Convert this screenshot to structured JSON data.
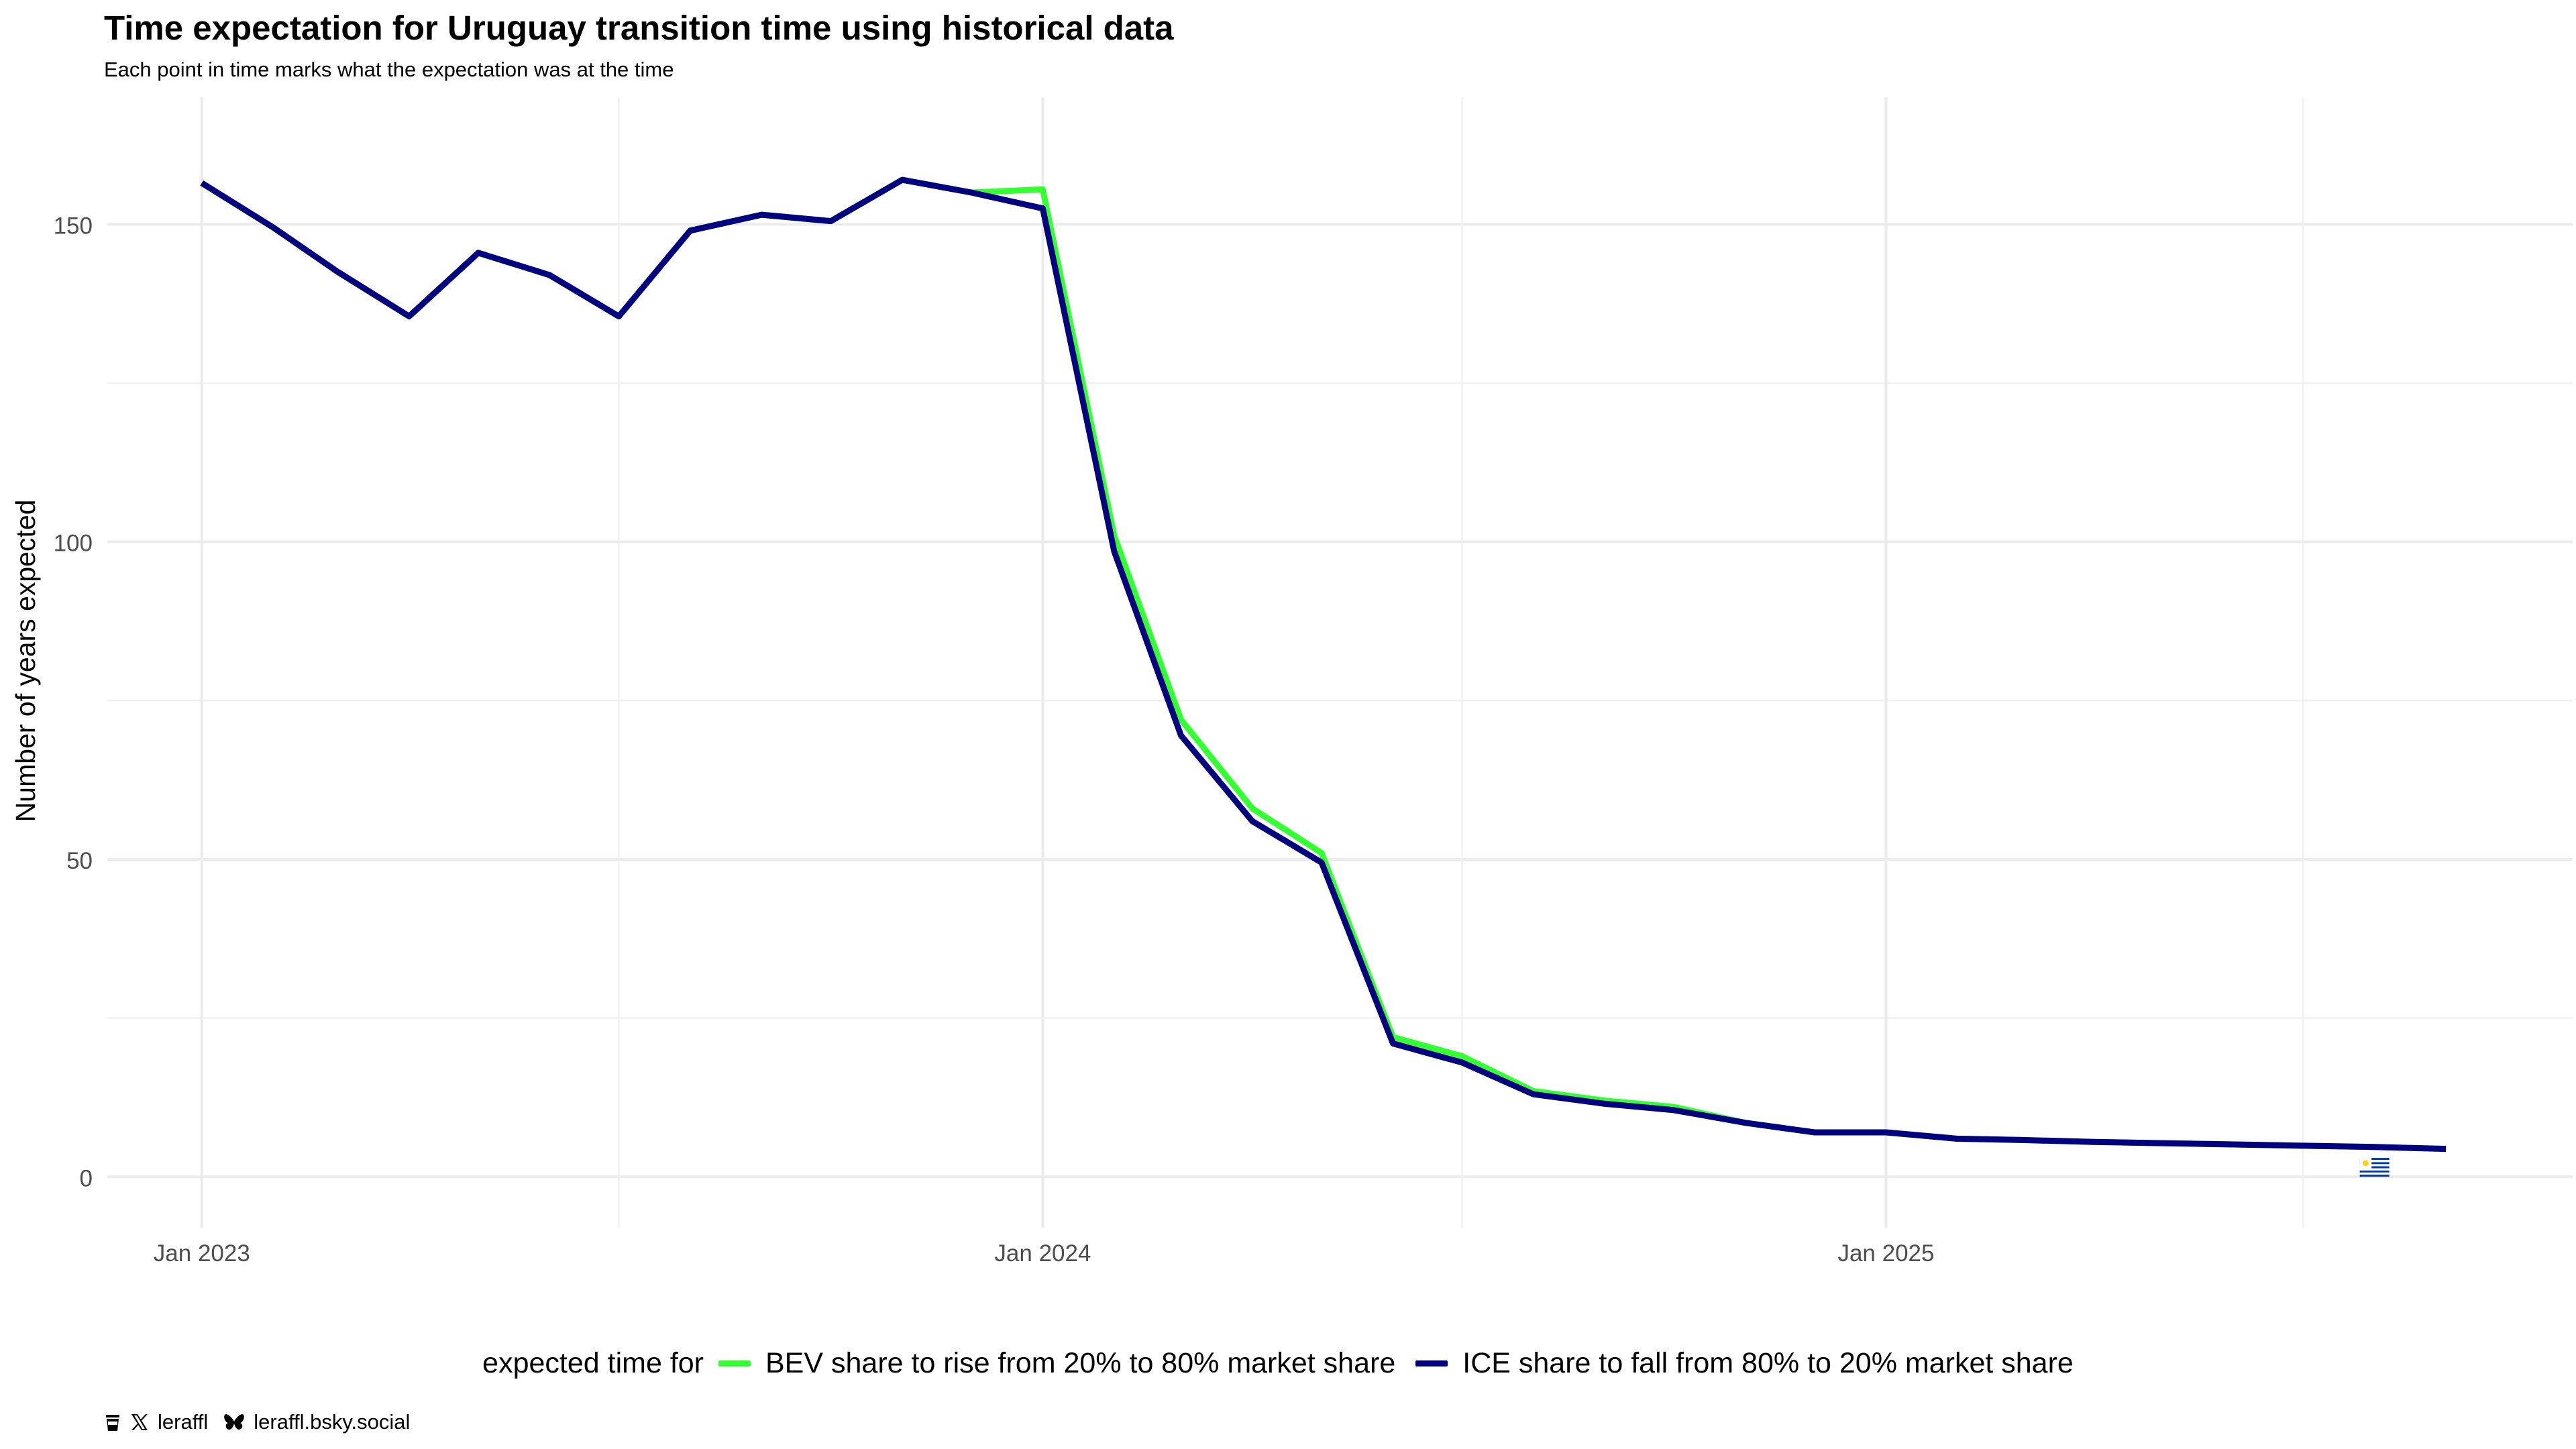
{
  "chart_data": {
    "type": "line",
    "title": "Time expectation for Uruguay transition time using historical data",
    "subtitle": "Each point in time marks what the expectation was at the time",
    "ylabel": "Number of years expected",
    "xlabel": "",
    "x_ticks": [
      "Jan 2023",
      "Jan 2024",
      "Jan 2025"
    ],
    "y_ticks": [
      0,
      50,
      100,
      150
    ],
    "ylim": [
      -8,
      170
    ],
    "xlim": [
      "2022-11-21",
      "2025-10-26"
    ],
    "grid": true,
    "legend_position": "bottom",
    "legend_title": "expected time for",
    "x": [
      "2023-01-01",
      "2023-02-01",
      "2023-03-01",
      "2023-04-01",
      "2023-05-01",
      "2023-06-01",
      "2023-07-01",
      "2023-08-01",
      "2023-09-01",
      "2023-10-01",
      "2023-11-01",
      "2023-12-01",
      "2024-01-01",
      "2024-02-01",
      "2024-03-01",
      "2024-04-01",
      "2024-05-01",
      "2024-06-01",
      "2024-07-01",
      "2024-08-01",
      "2024-09-01",
      "2024-10-01",
      "2024-11-01",
      "2024-12-01",
      "2025-01-01",
      "2025-02-01",
      "2025-03-01",
      "2025-04-01",
      "2025-05-01",
      "2025-06-01",
      "2025-07-01",
      "2025-08-01",
      "2025-09-01"
    ],
    "series": [
      {
        "name": "BEV share to rise from 20% to 80% market share",
        "color": "#33ff33",
        "values": [
          156.5,
          149.5,
          142.5,
          135.5,
          145.5,
          142.0,
          135.5,
          149.0,
          151.5,
          150.5,
          157.0,
          155.0,
          155.5,
          101.0,
          72.0,
          58.0,
          51.0,
          22.0,
          19.0,
          13.5,
          12.0,
          11.0,
          8.5,
          7.0,
          7.0,
          6.0,
          5.8,
          5.5,
          5.3,
          5.1,
          4.9,
          4.7,
          4.4
        ]
      },
      {
        "name": "ICE share to fall from 80% to 20% market share",
        "color": "#000080",
        "values": [
          156.5,
          149.5,
          142.5,
          135.5,
          145.5,
          142.0,
          135.5,
          149.0,
          151.5,
          150.5,
          157.0,
          155.0,
          152.5,
          98.5,
          69.5,
          56.0,
          49.5,
          21.0,
          18.0,
          13.0,
          11.5,
          10.5,
          8.5,
          7.0,
          7.0,
          6.0,
          5.8,
          5.5,
          5.3,
          5.1,
          4.9,
          4.7,
          4.4
        ]
      }
    ],
    "annotations": [
      {
        "type": "flag-icon",
        "country": "Uruguay",
        "x": "2025-08-01",
        "y": 1.5
      }
    ]
  },
  "footer": {
    "handle_x": "leraffl",
    "handle_bsky": "leraffl.bsky.social"
  },
  "icons": {
    "coffee": "coffee-icon",
    "x": "x-logo-icon",
    "bluesky": "butterfly-icon",
    "flag": "uruguay-flag-icon"
  }
}
